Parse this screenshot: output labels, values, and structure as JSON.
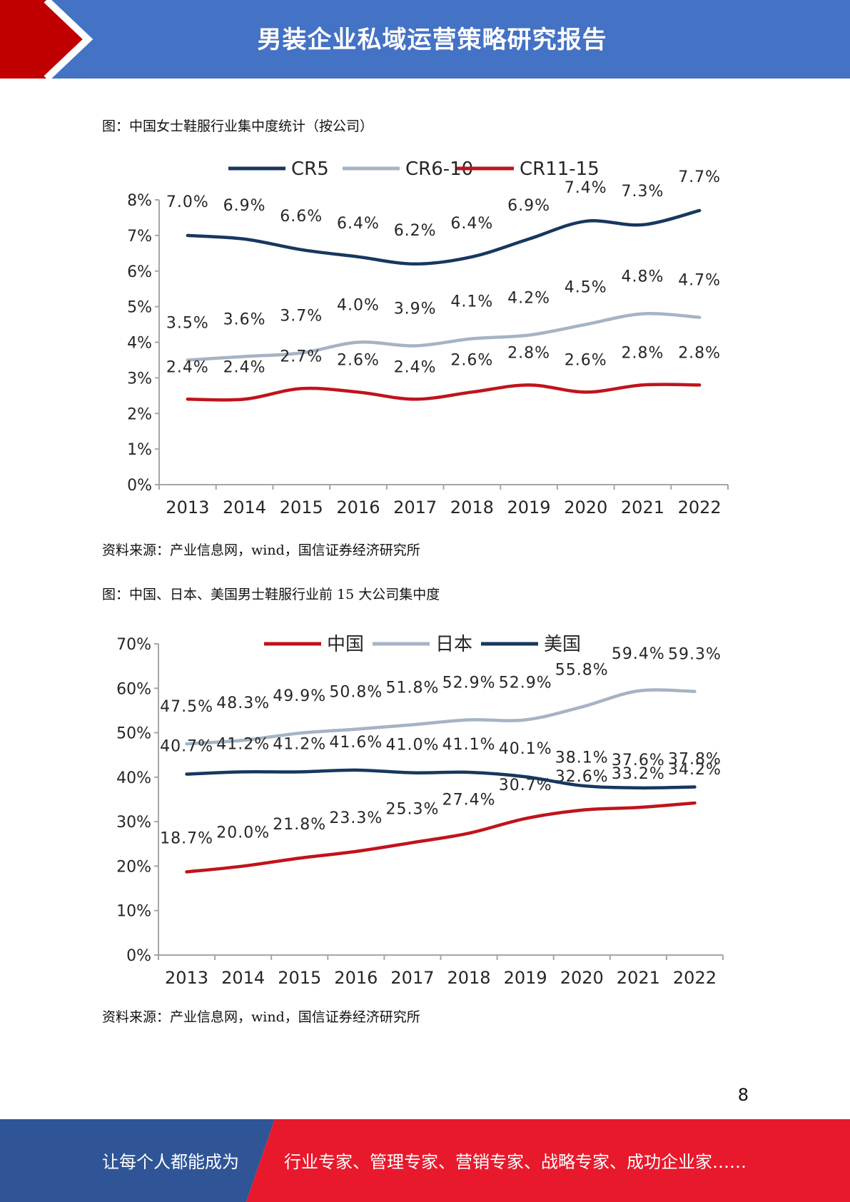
{
  "header": {
    "title": "男装企业私域运营策略研究报告"
  },
  "figure1": {
    "caption": "图：中国女士鞋服行业集中度统计（按公司）",
    "source": "资料来源：产业信息网，wind，国信证券经济研究所"
  },
  "figure2": {
    "caption": "图：中国、日本、美国男士鞋服行业前  15  大公司集中度",
    "source": "资料来源：产业信息网，wind，国信证券经济研究所"
  },
  "page_number": "8",
  "footer": {
    "left_text": "让每个人都能成为",
    "right_text": "行业专家、管理专家、营销专家、战略专家、成功企业家……"
  },
  "colors": {
    "header_blue": "#4472C4",
    "header_red": "#C00000",
    "footer_blue": "#2F5597",
    "footer_red": "#E8192C"
  },
  "chart_data": [
    {
      "type": "line",
      "categories": [
        "2013",
        "2014",
        "2015",
        "2016",
        "2017",
        "2018",
        "2019",
        "2020",
        "2021",
        "2022"
      ],
      "ylim": [
        0,
        8
      ],
      "yticks": [
        "0%",
        "1%",
        "2%",
        "3%",
        "4%",
        "5%",
        "6%",
        "7%",
        "8%"
      ],
      "legend": "top",
      "series": [
        {
          "name": "CR5",
          "color": "#17375E",
          "values": [
            7.0,
            6.9,
            6.6,
            6.4,
            6.2,
            6.4,
            6.9,
            7.4,
            7.3,
            7.7
          ],
          "labels": [
            "7.0%",
            "6.9%",
            "6.6%",
            "6.4%",
            "6.2%",
            "6.4%",
            "6.9%",
            "7.4%",
            "7.3%",
            "7.7%"
          ]
        },
        {
          "name": "CR6-10",
          "color": "#A5B4C4",
          "values": [
            3.5,
            3.6,
            3.7,
            4.0,
            3.9,
            4.1,
            4.2,
            4.5,
            4.8,
            4.7
          ],
          "labels": [
            "3.5%",
            "3.6%",
            "3.7%",
            "4.0%",
            "3.9%",
            "4.1%",
            "4.2%",
            "4.5%",
            "4.8%",
            "4.7%"
          ]
        },
        {
          "name": "CR11-15",
          "color": "#C0131C",
          "values": [
            2.4,
            2.4,
            2.7,
            2.6,
            2.4,
            2.6,
            2.8,
            2.6,
            2.8,
            2.8
          ],
          "labels": [
            "2.4%",
            "2.4%",
            "2.7%",
            "2.6%",
            "2.4%",
            "2.6%",
            "2.8%",
            "2.6%",
            "2.8%",
            "2.8%"
          ]
        }
      ]
    },
    {
      "type": "line",
      "categories": [
        "2013",
        "2014",
        "2015",
        "2016",
        "2017",
        "2018",
        "2019",
        "2020",
        "2021",
        "2022"
      ],
      "ylim": [
        0,
        70
      ],
      "yticks": [
        "0%",
        "10%",
        "20%",
        "30%",
        "40%",
        "50%",
        "60%",
        "70%"
      ],
      "legend": "top",
      "series": [
        {
          "name": "中国",
          "color": "#C0131C",
          "values": [
            18.7,
            20.0,
            21.8,
            23.3,
            25.3,
            27.4,
            30.7,
            32.6,
            33.2,
            34.2
          ],
          "labels": [
            "18.7%",
            "20.0%",
            "21.8%",
            "23.3%",
            "25.3%",
            "27.4%",
            "30.7%",
            "32.6%",
            "33.2%",
            "34.2%"
          ]
        },
        {
          "name": "日本",
          "color": "#A5B4C4",
          "values": [
            47.5,
            48.3,
            49.9,
            50.8,
            51.8,
            52.9,
            52.9,
            55.8,
            59.4,
            59.3
          ],
          "labels": [
            "47.5%",
            "48.3%",
            "49.9%",
            "50.8%",
            "51.8%",
            "52.9%",
            "52.9%",
            "55.8%",
            "59.4%",
            "59.3%"
          ]
        },
        {
          "name": "美国",
          "color": "#17375E",
          "values": [
            40.7,
            41.2,
            41.2,
            41.6,
            41.0,
            41.1,
            40.1,
            38.1,
            37.6,
            37.8
          ],
          "labels": [
            "40.7%",
            "41.2%",
            "41.2%",
            "41.6%",
            "41.0%",
            "41.1%",
            "40.1%",
            "38.1%",
            "37.6%",
            "37.8%"
          ]
        }
      ]
    }
  ]
}
